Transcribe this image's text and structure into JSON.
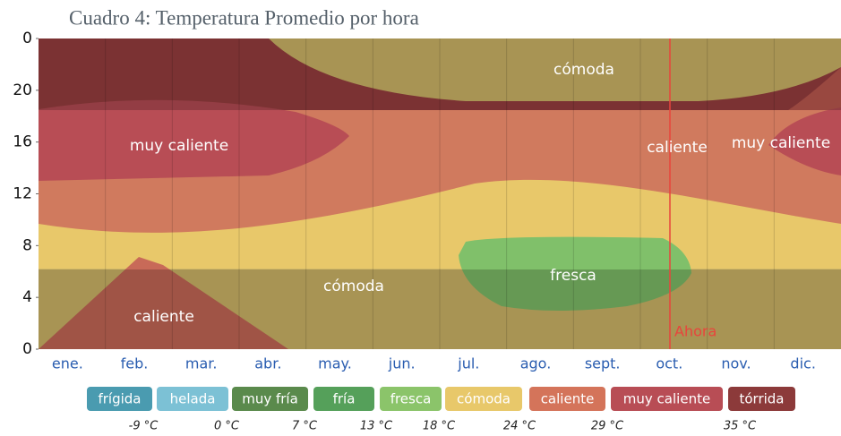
{
  "chart_data": {
    "type": "heatmap",
    "title": "Cuadro 4: Temperatura Promedio por hora",
    "categories": [
      "ene.",
      "feb.",
      "mar.",
      "abr.",
      "may.",
      "jun.",
      "jul.",
      "ago.",
      "sept.",
      "oct.",
      "nov.",
      "dic."
    ],
    "ylim": [
      0,
      24
    ],
    "yticks": [
      0,
      4,
      8,
      12,
      16,
      20,
      {
        "value": 24,
        "label": "0"
      }
    ],
    "regions": [
      "cómoda",
      "muy caliente",
      "caliente",
      "muy caliente",
      "cómoda",
      "fresca",
      "caliente"
    ],
    "annotation": "Ahora",
    "legend": {
      "labels": [
        "frígida",
        "helada",
        "muy fría",
        "fría",
        "fresca",
        "cómoda",
        "caliente",
        "muy caliente",
        "tórrida"
      ],
      "colors": [
        "#4a9bb0",
        "#7cc1d5",
        "#5a8a4c",
        "#55a05a",
        "#8bc46a",
        "#e8c86a",
        "#d4745a",
        "#b84d55",
        "#8c3a3a"
      ],
      "thresholds": [
        {
          "value": -9,
          "label": "-9 °C"
        },
        {
          "value": 0,
          "label": "0 °C"
        },
        {
          "value": 7,
          "label": "7 °C"
        },
        {
          "value": 13,
          "label": "13 °C"
        },
        {
          "value": 18,
          "label": "18 °C"
        },
        {
          "value": 24,
          "label": "24 °C"
        },
        {
          "value": 29,
          "label": "29 °C"
        },
        {
          "value": 35,
          "label": "35 °C"
        }
      ]
    }
  }
}
